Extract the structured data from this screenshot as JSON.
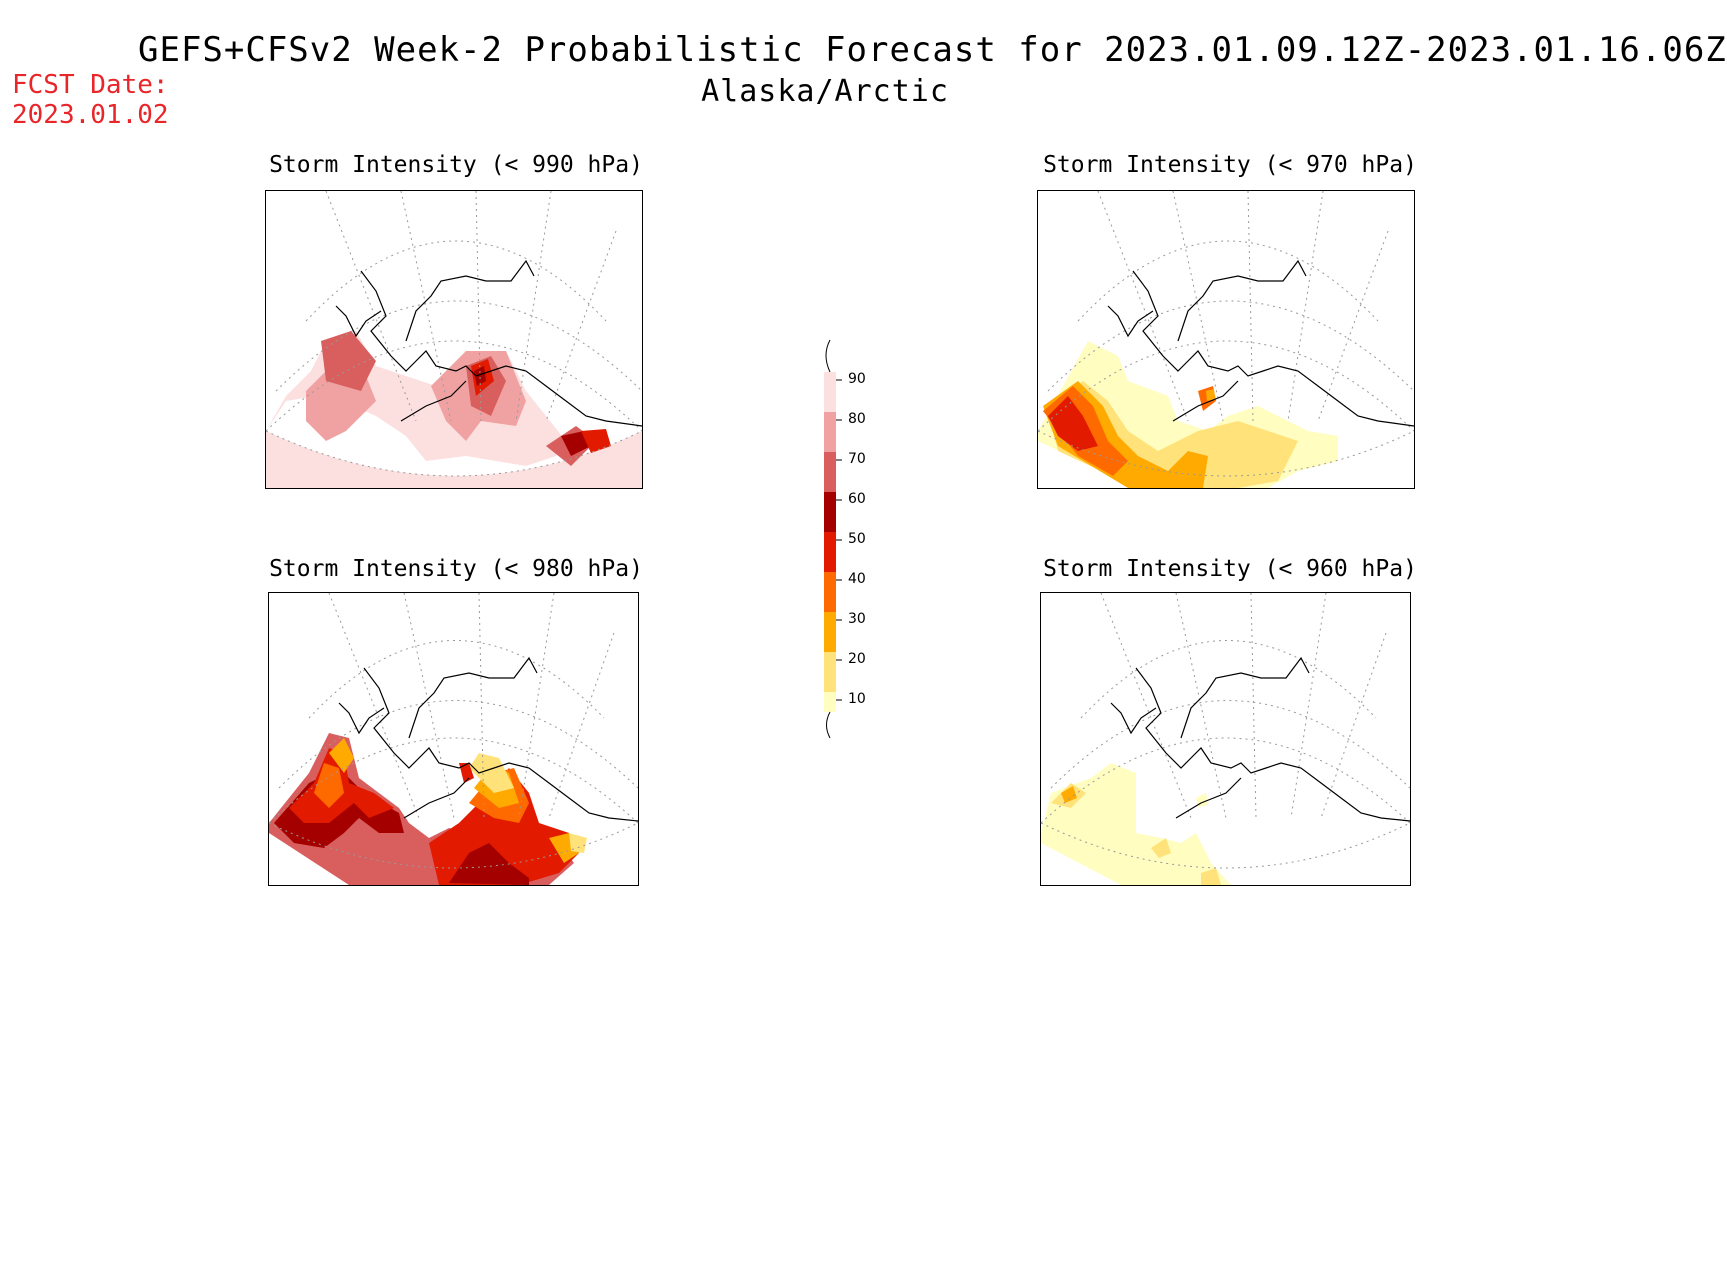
{
  "header": {
    "title": "GEFS+CFSv2 Week-2 Probabilistic Forecast for 2023.01.09.12Z-2023.01.16.06Z",
    "region": "Alaska/Arctic",
    "fcst_label": "FCST Date:",
    "fcst_date": "2023.01.02",
    "fcst_color": "#e8262a"
  },
  "panels": {
    "p990": {
      "title": "Storm Intensity (< 990 hPa)"
    },
    "p970": {
      "title": "Storm Intensity (< 970 hPa)"
    },
    "p980": {
      "title": "Storm Intensity (< 980 hPa)"
    },
    "p960": {
      "title": "Storm Intensity (< 960 hPa)"
    }
  },
  "legend": {
    "ticks": [
      "90",
      "80",
      "70",
      "60",
      "50",
      "40",
      "30",
      "20",
      "10"
    ],
    "colors": {
      "10": "#fffdc0",
      "20": "#ffe37a",
      "30": "#ffaa00",
      "40": "#ff6a00",
      "50": "#e21a00",
      "60": "#a50000",
      "70": "#d95f5f",
      "80": "#f0a2a2",
      "90": "#fce0e0"
    }
  }
}
